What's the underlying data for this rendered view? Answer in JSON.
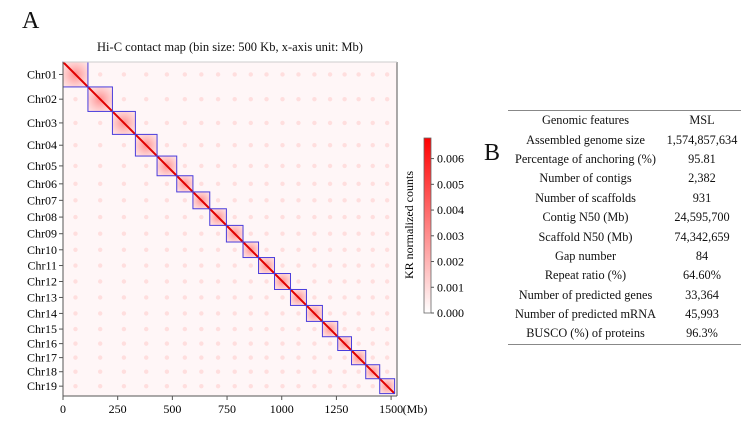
{
  "panel_labels": {
    "a": "A",
    "b": "B"
  },
  "chart_data": {
    "type": "heatmap",
    "title": "Hi-C contact map (bin size: 500 Kb, x-axis unit: Mb)",
    "xlabel": "(Mb)",
    "x_ticks": [
      "0",
      "250",
      "500",
      "750",
      "1000",
      "1250",
      "1500"
    ],
    "x_tick_values": [
      0,
      250,
      500,
      750,
      1000,
      1250,
      1500
    ],
    "xlim": [
      0,
      1527
    ],
    "chromosomes": [
      "Chr01",
      "Chr02",
      "Chr03",
      "Chr04",
      "Chr05",
      "Chr06",
      "Chr07",
      "Chr08",
      "Chr09",
      "Chr10",
      "Chr11",
      "Chr12",
      "Chr13",
      "Chr14",
      "Chr15",
      "Chr16",
      "Chr17",
      "Chr18",
      "Chr19"
    ],
    "chromosome_boundaries_mb": [
      0,
      114,
      226,
      331,
      430,
      520,
      594,
      671,
      747,
      823,
      894,
      967,
      1040,
      1113,
      1186,
      1256,
      1319,
      1384,
      1448,
      1516
    ],
    "colorbar": {
      "label": "KR normalized counts",
      "ticks": [
        "0.000",
        "0.001",
        "0.002",
        "0.003",
        "0.004",
        "0.005",
        "0.006"
      ],
      "range": [
        0,
        0.0068
      ],
      "colors": [
        "#ffffff",
        "#ff0000"
      ]
    },
    "block_outline_color": "#4a3ddc"
  },
  "table": {
    "headers": [
      "Genomic features",
      "MSL"
    ],
    "rows": [
      [
        "Assembled genome size",
        "1,574,857,634"
      ],
      [
        "Percentage of anchoring (%)",
        "95.81"
      ],
      [
        "Number of contigs",
        "2,382"
      ],
      [
        "Number of scaffolds",
        "931"
      ],
      [
        "Contig N50 (Mb)",
        "24,595,700"
      ],
      [
        "Scaffold N50 (Mb)",
        "74,342,659"
      ],
      [
        "Gap number",
        "84"
      ],
      [
        "Repeat ratio (%)",
        "64.60%"
      ],
      [
        "Number of predicted genes",
        "33,364"
      ],
      [
        "Number of predicted mRNA",
        "45,993"
      ],
      [
        "BUSCO (%) of proteins",
        "96.3%"
      ]
    ]
  }
}
